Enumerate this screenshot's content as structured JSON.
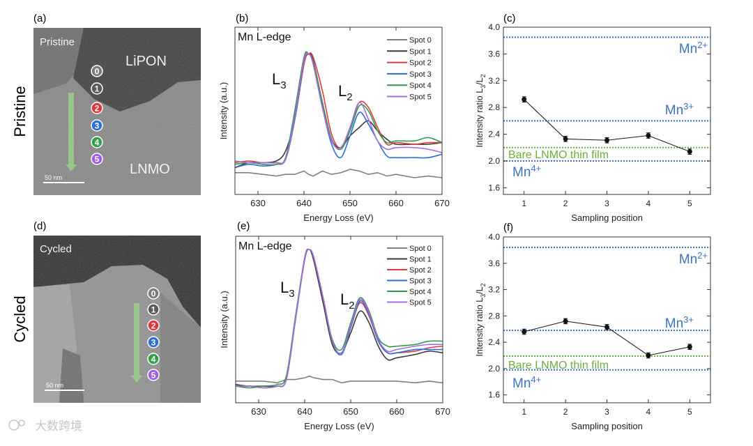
{
  "row_labels": [
    "Pristine",
    "Cycled"
  ],
  "panel_letters": [
    "(a)",
    "(b)",
    "(c)",
    "(d)",
    "(e)",
    "(f)"
  ],
  "images": [
    {
      "title": "Pristine",
      "regions": [
        "LiPON",
        "LNMO"
      ],
      "scale_bar": "50 nm",
      "spots": [
        "0",
        "1",
        "2",
        "3",
        "4",
        "5"
      ]
    },
    {
      "title": "Cycled",
      "regions": [],
      "scale_bar": "50 nm",
      "spots": [
        "0",
        "1",
        "2",
        "3",
        "4",
        "5"
      ]
    }
  ],
  "spot_colors": [
    "#7c7c7c",
    "#5a5a5a",
    "#e0363a",
    "#2d6fd6",
    "#33a04c",
    "#a25ee0"
  ],
  "watermark": "大数跨境",
  "chart_data": [
    {
      "type": "line",
      "panel": "(b)",
      "title": "Mn L-edge",
      "xlabel": "Energy Loss (eV)",
      "ylabel": "Intensity (a.u.)",
      "xlim": [
        625,
        670
      ],
      "ylim": [
        0,
        1
      ],
      "xticks": [
        630,
        640,
        650,
        660,
        670
      ],
      "peak_labels": [
        {
          "main": "L",
          "sub": "3"
        },
        {
          "main": "L",
          "sub": "2"
        }
      ],
      "x": [
        625,
        628,
        631,
        634,
        636,
        638,
        640,
        641,
        642,
        644,
        646,
        648,
        650,
        652,
        654,
        656,
        658,
        660,
        664,
        667,
        670
      ],
      "legend_position": "top-right",
      "series": [
        {
          "name": "Spot 0",
          "color": "#808080",
          "values": [
            0.13,
            0.13,
            0.12,
            0.11,
            0.12,
            0.12,
            0.14,
            0.12,
            0.11,
            0.14,
            0.12,
            0.13,
            0.15,
            0.14,
            0.12,
            0.13,
            0.11,
            0.12,
            0.1,
            0.11,
            0.1
          ]
        },
        {
          "name": "Spot 1",
          "color": "#3a3a3a",
          "values": [
            0.16,
            0.19,
            0.19,
            0.2,
            0.26,
            0.45,
            0.78,
            0.84,
            0.8,
            0.55,
            0.33,
            0.28,
            0.35,
            0.4,
            0.44,
            0.38,
            0.33,
            0.3,
            0.3,
            0.3,
            0.31
          ]
        },
        {
          "name": "Spot 2",
          "color": "#e03a3a",
          "values": [
            0.19,
            0.2,
            0.19,
            0.19,
            0.21,
            0.45,
            0.78,
            0.84,
            0.82,
            0.62,
            0.36,
            0.28,
            0.4,
            0.55,
            0.52,
            0.4,
            0.3,
            0.31,
            0.3,
            0.31,
            0.31
          ]
        },
        {
          "name": "Spot 3",
          "color": "#2a6fd6",
          "values": [
            0.16,
            0.18,
            0.17,
            0.18,
            0.21,
            0.45,
            0.8,
            0.84,
            0.78,
            0.52,
            0.3,
            0.22,
            0.35,
            0.49,
            0.42,
            0.32,
            0.23,
            0.22,
            0.22,
            0.22,
            0.24
          ]
        },
        {
          "name": "Spot 4",
          "color": "#2e9a4e",
          "values": [
            0.18,
            0.19,
            0.18,
            0.18,
            0.22,
            0.5,
            0.82,
            0.84,
            0.79,
            0.55,
            0.33,
            0.27,
            0.38,
            0.53,
            0.5,
            0.38,
            0.31,
            0.32,
            0.32,
            0.34,
            0.31
          ]
        },
        {
          "name": "Spot 5",
          "color": "#a86be0",
          "values": [
            0.2,
            0.19,
            0.19,
            0.19,
            0.21,
            0.47,
            0.8,
            0.84,
            0.78,
            0.52,
            0.32,
            0.28,
            0.4,
            0.55,
            0.45,
            0.32,
            0.27,
            0.28,
            0.28,
            0.27,
            0.25
          ]
        }
      ]
    },
    {
      "type": "line",
      "panel": "(c)",
      "xlabel": "Sampling position",
      "ylabel": {
        "a": "Intensity ratio L",
        "b": "3",
        "c": "/L",
        "d": "2"
      },
      "xlim": [
        0.5,
        5.5
      ],
      "ylim": [
        1.5,
        4.0
      ],
      "xticks": [
        1,
        2,
        3,
        4,
        5
      ],
      "yticks": [
        "1.6",
        "2.0",
        "2.4",
        "2.8",
        "3.2",
        "3.6",
        "4.0"
      ],
      "x": [
        1,
        2,
        3,
        4,
        5
      ],
      "values": [
        2.92,
        2.33,
        2.31,
        2.38,
        2.14
      ],
      "errors": [
        0.04,
        0.04,
        0.04,
        0.04,
        0.04
      ],
      "reference_lines": [
        {
          "base": "Mn",
          "sup": "2+",
          "value": 3.85,
          "color": "#3b73c0"
        },
        {
          "base": "Mn",
          "sup": "3+",
          "value": 2.6,
          "color": "#3b73c0"
        },
        {
          "base": "Bare LNMO thin film",
          "sup": "",
          "value": 2.2,
          "color": "#6aae3e"
        },
        {
          "base": "Mn",
          "sup": "4+",
          "value": 2.0,
          "color": "#3b73c0"
        }
      ]
    },
    {
      "type": "line",
      "panel": "(e)",
      "title": "Mn L-edge",
      "xlabel": "Energy Loss (eV)",
      "ylabel": "Intensity (a.u.)",
      "xlim": [
        625,
        670
      ],
      "ylim": [
        0,
        1
      ],
      "xticks": [
        630,
        640,
        650,
        660,
        670
      ],
      "peak_labels": [
        {
          "main": "L",
          "sub": "3"
        },
        {
          "main": "L",
          "sub": "2"
        }
      ],
      "x": [
        625,
        628,
        631,
        634,
        636,
        638,
        640,
        641,
        642,
        644,
        646,
        648,
        650,
        652,
        654,
        656,
        658,
        660,
        664,
        667,
        670
      ],
      "legend_position": "top-right",
      "series": [
        {
          "name": "Spot 0",
          "color": "#808080",
          "values": [
            0.13,
            0.13,
            0.13,
            0.12,
            0.14,
            0.14,
            0.15,
            0.16,
            0.15,
            0.14,
            0.14,
            0.12,
            0.13,
            0.13,
            0.13,
            0.13,
            0.13,
            0.13,
            0.12,
            0.13,
            0.12
          ]
        },
        {
          "name": "Spot 1",
          "color": "#3a3a3a",
          "values": [
            0.11,
            0.1,
            0.1,
            0.1,
            0.14,
            0.5,
            0.86,
            0.92,
            0.85,
            0.6,
            0.35,
            0.3,
            0.42,
            0.55,
            0.48,
            0.34,
            0.26,
            0.27,
            0.29,
            0.31,
            0.3
          ]
        },
        {
          "name": "Spot 2",
          "color": "#e03a3a",
          "values": [
            0.1,
            0.1,
            0.09,
            0.1,
            0.14,
            0.5,
            0.87,
            0.92,
            0.87,
            0.63,
            0.37,
            0.3,
            0.45,
            0.6,
            0.52,
            0.37,
            0.3,
            0.3,
            0.31,
            0.33,
            0.34
          ]
        },
        {
          "name": "Spot 3",
          "color": "#2a6fd6",
          "values": [
            0.1,
            0.1,
            0.09,
            0.1,
            0.14,
            0.5,
            0.87,
            0.92,
            0.87,
            0.63,
            0.37,
            0.29,
            0.45,
            0.61,
            0.53,
            0.37,
            0.3,
            0.3,
            0.32,
            0.32,
            0.32
          ]
        },
        {
          "name": "Spot 4",
          "color": "#2e9a4e",
          "values": [
            0.1,
            0.09,
            0.1,
            0.11,
            0.16,
            0.52,
            0.87,
            0.92,
            0.87,
            0.63,
            0.38,
            0.32,
            0.48,
            0.63,
            0.55,
            0.39,
            0.34,
            0.34,
            0.35,
            0.37,
            0.37
          ]
        },
        {
          "name": "Spot 5",
          "color": "#a86be0",
          "values": [
            0.1,
            0.1,
            0.09,
            0.1,
            0.14,
            0.5,
            0.87,
            0.92,
            0.87,
            0.63,
            0.37,
            0.3,
            0.46,
            0.62,
            0.54,
            0.38,
            0.31,
            0.32,
            0.34,
            0.35,
            0.35
          ]
        }
      ]
    },
    {
      "type": "line",
      "panel": "(f)",
      "xlabel": "Sampling position",
      "ylabel": {
        "a": "Intensity ratio L",
        "b": "3",
        "c": "/L",
        "d": "2"
      },
      "xlim": [
        0.5,
        5.5
      ],
      "ylim": [
        1.48,
        4.0
      ],
      "xticks": [
        1,
        2,
        3,
        4,
        5
      ],
      "yticks": [
        "1.6",
        "2.0",
        "2.4",
        "2.8",
        "3.2",
        "3.6",
        "4.0"
      ],
      "x": [
        1,
        2,
        3,
        4,
        5
      ],
      "values": [
        2.56,
        2.72,
        2.63,
        2.2,
        2.33
      ],
      "errors": [
        0.04,
        0.04,
        0.04,
        0.04,
        0.04
      ],
      "reference_lines": [
        {
          "base": "Mn",
          "sup": "2+",
          "value": 3.84,
          "color": "#3b73c0"
        },
        {
          "base": "Mn",
          "sup": "3+",
          "value": 2.58,
          "color": "#3b73c0"
        },
        {
          "base": "Bare LNMO thin film",
          "sup": "",
          "value": 2.19,
          "color": "#6aae3e"
        },
        {
          "base": "Mn",
          "sup": "4+",
          "value": 1.98,
          "color": "#3b73c0"
        }
      ]
    }
  ]
}
